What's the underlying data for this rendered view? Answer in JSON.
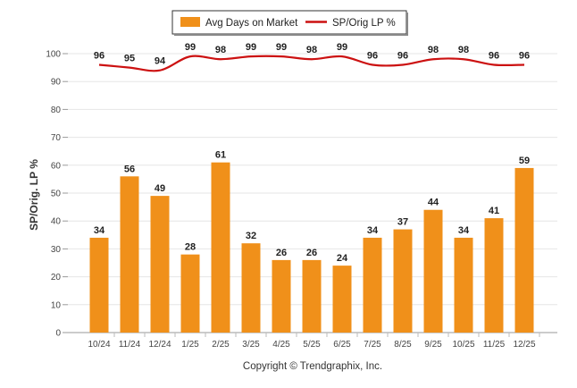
{
  "chart_data": {
    "type": "bar",
    "categories": [
      "10/24",
      "11/24",
      "12/24",
      "1/25",
      "2/25",
      "3/25",
      "4/25",
      "5/25",
      "6/25",
      "7/25",
      "8/25",
      "9/25",
      "10/25",
      "11/25",
      "12/25"
    ],
    "series": [
      {
        "name": "Avg Days on Market",
        "type": "bar",
        "color": "#f0901a",
        "values": [
          34,
          56,
          49,
          28,
          61,
          32,
          26,
          26,
          24,
          34,
          37,
          44,
          34,
          41,
          59
        ]
      },
      {
        "name": "SP/Orig LP %",
        "type": "line",
        "color": "#cc1111",
        "values": [
          96,
          95,
          94,
          99,
          98,
          99,
          99,
          98,
          99,
          96,
          96,
          98,
          98,
          96,
          96
        ]
      }
    ],
    "ylabel": "SP/Orig. LP %",
    "xlabel": "",
    "ylim": [
      0,
      100
    ],
    "yticks": [
      0,
      10,
      20,
      30,
      40,
      50,
      60,
      70,
      80,
      90,
      100
    ],
    "grid": true,
    "legend_position": "top-center"
  },
  "caption": "Copyright © Trendgraphix, Inc."
}
